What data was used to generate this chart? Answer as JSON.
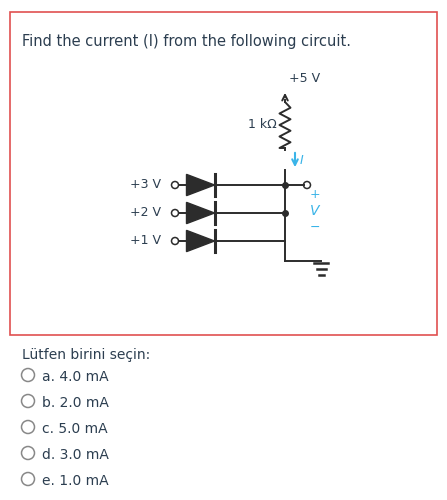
{
  "title": "Find the current (I) from the following circuit.",
  "bg_color": "#ffffff",
  "border_color": "#e05050",
  "question_text": "Find the current (I) from the following circuit.",
  "voltage_top": "+5 V",
  "resistor_label": "1 kΩ",
  "current_label": "I",
  "v_label": "V",
  "plus_label": "+",
  "minus_label": "−",
  "sources": [
    "+3 V",
    "+2 V",
    "+1 V"
  ],
  "choices_header": "Lütfen birini seçin:",
  "choices": [
    "a. 4.0 mA",
    "b. 2.0 mA",
    "c. 5.0 mA",
    "d. 3.0 mA",
    "e. 1.0 mA"
  ],
  "text_color": "#2c3e50",
  "current_arrow_color": "#3ab4e8",
  "v_label_color": "#3ab4e8",
  "circuit_line_color": "#2c2c2c",
  "figw": 4.47,
  "figh": 5.0,
  "dpi": 100
}
